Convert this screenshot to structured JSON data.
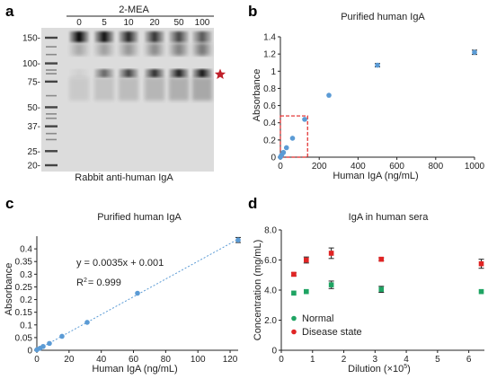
{
  "colors": {
    "blue": "#5b9bd5",
    "green": "#1fa463",
    "red": "#e02424",
    "star": "#c0202a",
    "fit": "#5b9bd5"
  },
  "panel_a": {
    "label": "a",
    "header": "2-MEA",
    "lane_labels": [
      "0",
      "5",
      "10",
      "20",
      "50",
      "100"
    ],
    "marker_labels": [
      "150-",
      "100-",
      "75-",
      "50-",
      "37-",
      "25-",
      "20-"
    ],
    "marker_kda": [
      150,
      100,
      75,
      50,
      37,
      25,
      20
    ],
    "caption": "Rabbit anti-human IgA",
    "star_icon": "star-icon"
  },
  "panel_b": {
    "label": "b",
    "chart_data": {
      "type": "scatter",
      "title": "Purified human IgA",
      "xlabel": "Human IgA (ng/mL)",
      "ylabel": "Absorbance",
      "xlim": [
        0,
        1000
      ],
      "ylim": [
        0,
        1.4
      ],
      "xticks": [
        0,
        200,
        400,
        600,
        800,
        1000
      ],
      "yticks": [
        0,
        0.2,
        0.4,
        0.6,
        0.8,
        1.0,
        1.2,
        1.4
      ],
      "ytick_labels": [
        "0",
        "0.2",
        "0.4",
        "0.6",
        "0.8",
        "1",
        "1.2",
        "1.4"
      ],
      "x": [
        0,
        3.9,
        7.8,
        15.6,
        31.25,
        62.5,
        125,
        250,
        500,
        1000
      ],
      "y": [
        0.0,
        0.015,
        0.03,
        0.055,
        0.11,
        0.22,
        0.44,
        0.72,
        1.07,
        1.22
      ],
      "err": [
        0,
        0,
        0,
        0,
        0,
        0,
        0,
        0,
        0.02,
        0.025
      ],
      "zoom_box": {
        "x": [
          0,
          140
        ],
        "y": [
          0,
          0.48
        ]
      }
    }
  },
  "panel_c": {
    "label": "c",
    "chart_data": {
      "type": "scatter",
      "title": "Purified human IgA",
      "xlabel": "Human IgA (ng/mL)",
      "ylabel": "Absorbance",
      "xlim": [
        0,
        125
      ],
      "ylim": [
        0,
        0.45
      ],
      "xticks": [
        0,
        20,
        40,
        60,
        80,
        100,
        120
      ],
      "yticks": [
        0,
        0.05,
        0.1,
        0.15,
        0.2,
        0.25,
        0.3,
        0.35,
        0.4
      ],
      "ytick_labels": [
        "0",
        "0.05",
        "0.1",
        "0.15",
        "0.2",
        "0.25",
        "0.3",
        "0.35",
        "0.4"
      ],
      "x": [
        0,
        1.95,
        3.9,
        7.8,
        15.6,
        31.25,
        62.5,
        125
      ],
      "y": [
        0.002,
        0.008,
        0.015,
        0.027,
        0.055,
        0.11,
        0.225,
        0.435
      ],
      "err": [
        0,
        0,
        0,
        0,
        0,
        0,
        0,
        0.01
      ],
      "fit": {
        "slope": 0.0035,
        "intercept": 0.001
      },
      "equation_prefix": "y = 0.0035x + 0.001",
      "r2_label": "R",
      "r2_sup": "2",
      "r2_value": "= 0.999"
    }
  },
  "panel_d": {
    "label": "d",
    "chart_data": {
      "type": "scatter",
      "title": "IgA in human sera",
      "xlabel": "Dilution (×10",
      "xlabel_sup": "5",
      "xlabel_end": ")",
      "ylabel": "Concentration (mg/mL)",
      "xlim": [
        0,
        6.5
      ],
      "ylim": [
        0,
        8.0
      ],
      "xticks": [
        0,
        1,
        2,
        3,
        4,
        5,
        6
      ],
      "yticks": [
        0,
        2,
        4,
        6,
        8
      ],
      "ytick_labels": [
        "0",
        "2.0",
        "4.0",
        "6.0",
        "8.0"
      ],
      "legend_position": "bottom-left",
      "series": [
        {
          "name": "Normal",
          "color": "green",
          "x": [
            0.4,
            0.8,
            1.6,
            3.2,
            6.4
          ],
          "y": [
            3.8,
            3.9,
            4.35,
            4.05,
            3.9
          ],
          "err": [
            0,
            0,
            0.25,
            0.2,
            0
          ]
        },
        {
          "name": "Disease state",
          "color": "red",
          "x": [
            0.4,
            0.8,
            1.6,
            3.2,
            6.4
          ],
          "y": [
            5.05,
            6.0,
            6.45,
            6.05,
            5.75
          ],
          "err": [
            0.1,
            0.2,
            0.35,
            0.1,
            0.3
          ]
        }
      ]
    }
  }
}
